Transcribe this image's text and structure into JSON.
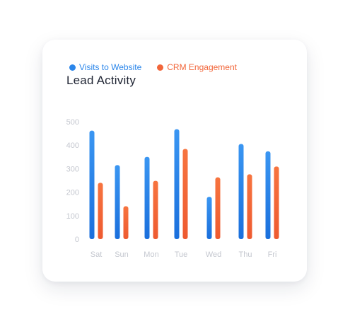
{
  "card": {
    "title": "Lead Activity"
  },
  "colors": {
    "series_visits": "#2b86ea",
    "series_crm": "#f2663a",
    "axis_text": "#c4c7cf",
    "title_text": "#1f2433"
  },
  "chart_data": {
    "type": "bar",
    "title": "Lead Activity",
    "xlabel": "",
    "ylabel": "",
    "ylim": [
      0,
      500
    ],
    "yticks": [
      "0",
      "100",
      "200",
      "300",
      "400",
      "500"
    ],
    "grid": false,
    "legend_position": "top",
    "categories": [
      "Sat",
      "Sun",
      "Mon",
      "Tue",
      "Wed",
      "Thu",
      "Fri"
    ],
    "series": [
      {
        "name": "Visits to Website",
        "color": "#2b86ea",
        "values": [
          462,
          315,
          350,
          468,
          180,
          405,
          374
        ]
      },
      {
        "name": "CRM Engagement",
        "color": "#f2663a",
        "values": [
          240,
          140,
          248,
          384,
          263,
          276,
          309
        ]
      }
    ]
  }
}
